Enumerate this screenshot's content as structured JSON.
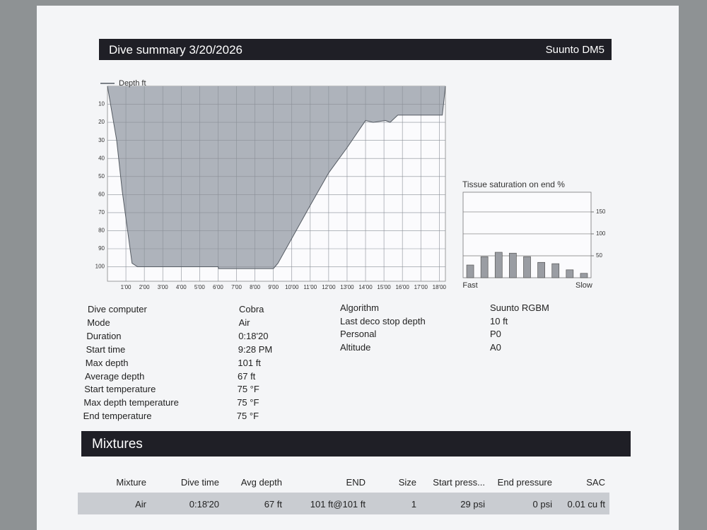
{
  "header": {
    "title": "Dive summary 3/20/2026",
    "brand": "Suunto DM5"
  },
  "chart_data": [
    {
      "type": "area",
      "legend": "top-left",
      "series": [
        {
          "name": "Depth ft",
          "color": "#aeb3bb",
          "x": [
            0,
            30,
            48,
            80,
            98,
            360,
            362,
            540,
            555,
            660,
            720,
            780,
            840,
            865,
            905,
            920,
            945,
            990,
            1090,
            1100
          ],
          "values": [
            0,
            30,
            58,
            98,
            100,
            100,
            101,
            101,
            98,
            66,
            48,
            34,
            19,
            20,
            19,
            20,
            16,
            16,
            16,
            0
          ]
        }
      ],
      "xlim": [
        0,
        1100
      ],
      "ylim": [
        0,
        108
      ],
      "y_inverted": true,
      "grid": true,
      "yticks": [
        10,
        20,
        30,
        40,
        50,
        60,
        70,
        80,
        90,
        100
      ],
      "xticks": [
        {
          "value": 60,
          "label": "1'00"
        },
        {
          "value": 120,
          "label": "2'00"
        },
        {
          "value": 180,
          "label": "3'00"
        },
        {
          "value": 240,
          "label": "4'00"
        },
        {
          "value": 300,
          "label": "5'00"
        },
        {
          "value": 360,
          "label": "6'00"
        },
        {
          "value": 420,
          "label": "7'00"
        },
        {
          "value": 480,
          "label": "8'00"
        },
        {
          "value": 540,
          "label": "9'00"
        },
        {
          "value": 600,
          "label": "10'00"
        },
        {
          "value": 660,
          "label": "11'00"
        },
        {
          "value": 720,
          "label": "12'00"
        },
        {
          "value": 780,
          "label": "13'00"
        },
        {
          "value": 840,
          "label": "14'00"
        },
        {
          "value": 900,
          "label": "15'00"
        },
        {
          "value": 960,
          "label": "16'00"
        },
        {
          "value": 1020,
          "label": "17'00"
        },
        {
          "value": 1080,
          "label": "18'00"
        }
      ]
    },
    {
      "type": "bar",
      "title": "Tissue saturation on end %",
      "categories": [
        "Fast",
        null,
        null,
        null,
        null,
        null,
        null,
        null,
        "Slow"
      ],
      "values": [
        29,
        48,
        58,
        56,
        48,
        35,
        32,
        18,
        10
      ],
      "color": "#9a9da3",
      "ylim": [
        0,
        195
      ],
      "yticks": [
        50,
        100,
        150
      ],
      "grid": true
    }
  ],
  "details": {
    "left": [
      [
        "Dive computer",
        "Cobra"
      ],
      [
        "Mode",
        "Air"
      ],
      [
        "Duration",
        "0:18'20"
      ],
      [
        "Start time",
        "9:28 PM"
      ],
      [
        "Max depth",
        "101 ft"
      ],
      [
        "Average depth",
        "67 ft"
      ],
      [
        "Start temperature",
        "75 °F"
      ],
      [
        "Max depth temperature",
        "75 °F"
      ],
      [
        "End temperature",
        "75 °F"
      ]
    ],
    "right": [
      [
        "Algorithm",
        "Suunto RGBM"
      ],
      [
        "Last deco stop depth",
        "10 ft"
      ],
      [
        "Personal",
        "P0"
      ],
      [
        "Altitude",
        "A0"
      ]
    ]
  },
  "mixtures": {
    "title": "Mixtures",
    "columns": [
      "Mixture",
      "Dive time",
      "Avg depth",
      "END",
      "Size",
      "Start press...",
      "End pressure",
      "SAC"
    ],
    "rows": [
      [
        "Air",
        "0:18'20",
        "67 ft",
        "101 ft@101 ft",
        "1",
        "29 psi",
        "0 psi",
        "0.01 cu ft"
      ]
    ]
  }
}
